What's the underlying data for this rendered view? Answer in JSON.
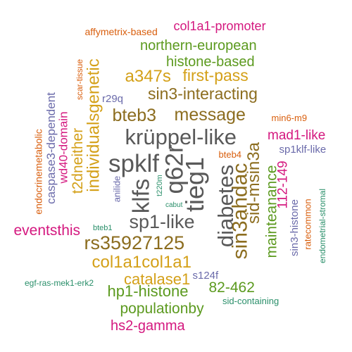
{
  "colors": {
    "gray": "#595959",
    "brown": "#8C6D1F",
    "gold": "#D4A018",
    "green": "#5C9A1F",
    "magenta": "#D4187F",
    "orange": "#D95F0E",
    "purple": "#6A6AAA",
    "teal": "#2A8F6A"
  },
  "words": [
    {
      "id": "affymetrix-based",
      "text": "affymetrix-based",
      "color": "orange"
    },
    {
      "id": "col1a1-promoter",
      "text": "col1a1-promoter",
      "color": "magenta"
    },
    {
      "id": "northern-european",
      "text": "northern-european",
      "color": "green"
    },
    {
      "id": "histone-based",
      "text": "histone-based",
      "color": "green"
    },
    {
      "id": "a347s",
      "text": "a347s",
      "color": "gold"
    },
    {
      "id": "first-pass",
      "text": "first-pass",
      "color": "gold"
    },
    {
      "id": "scar-tissue",
      "text": "scar-tissue",
      "color": "orange"
    },
    {
      "id": "caspase3-dependent",
      "text": "caspase3-dependent",
      "color": "purple"
    },
    {
      "id": "endocrinemetabolic",
      "text": "endocrinemetabolic",
      "color": "orange"
    },
    {
      "id": "individualsgenetic",
      "text": "individualsgenetic",
      "color": "gold"
    },
    {
      "id": "t2dneither",
      "text": "t2dneither",
      "color": "gold"
    },
    {
      "id": "wd40-domain",
      "text": "wd40-domain",
      "color": "magenta"
    },
    {
      "id": "r29q",
      "text": "r29q",
      "color": "purple"
    },
    {
      "id": "sin3-interacting",
      "text": "sin3-interacting",
      "color": "brown"
    },
    {
      "id": "bteb3",
      "text": "bteb3",
      "color": "brown"
    },
    {
      "id": "message",
      "text": "message",
      "color": "brown"
    },
    {
      "id": "min6-m9",
      "text": "min6-m9",
      "color": "orange"
    },
    {
      "id": "krüppel-like",
      "text": "krüppel-like",
      "color": "gray"
    },
    {
      "id": "mad1-like",
      "text": "mad1-like",
      "color": "magenta"
    },
    {
      "id": "sp1klf-like",
      "text": "sp1klf-like",
      "color": "purple"
    },
    {
      "id": "spklf",
      "text": "spklf",
      "color": "gray"
    },
    {
      "id": "klfs",
      "text": "klfs",
      "color": "gray"
    },
    {
      "id": "q62r",
      "text": "q62r",
      "color": "gray"
    },
    {
      "id": "tieg1",
      "text": "tieg1",
      "color": "gray"
    },
    {
      "id": "diabetes",
      "text": "diabetes",
      "color": "gray"
    },
    {
      "id": "sin3ahdac",
      "text": "sin3ahdac",
      "color": "brown"
    },
    {
      "id": "sid-msin3a",
      "text": "sid-msin3a",
      "color": "brown"
    },
    {
      "id": "bteb4",
      "text": "bteb4",
      "color": "orange"
    },
    {
      "id": "anilide",
      "text": "anilide",
      "color": "purple"
    },
    {
      "id": "t220m",
      "text": "t220m",
      "color": "teal"
    },
    {
      "id": "cabut",
      "text": "cabut",
      "color": "teal"
    },
    {
      "id": "mainteanance",
      "text": "mainteanance",
      "color": "green"
    },
    {
      "id": "112-149",
      "text": "112-149",
      "color": "magenta"
    },
    {
      "id": "sin3-histone",
      "text": "sin3-histone",
      "color": "purple"
    },
    {
      "id": "ratecommon",
      "text": "ratecommon",
      "color": "orange"
    },
    {
      "id": "endometrial-stromal",
      "text": "endometrial-stromal",
      "color": "teal"
    },
    {
      "id": "eventsthis",
      "text": "eventsthis",
      "color": "magenta"
    },
    {
      "id": "bteb1",
      "text": "bteb1",
      "color": "teal"
    },
    {
      "id": "sp1-like",
      "text": "sp1-like",
      "color": "gray"
    },
    {
      "id": "rs35927125",
      "text": "rs35927125",
      "color": "brown"
    },
    {
      "id": "col1a1col1a1",
      "text": "col1a1col1a1",
      "color": "gold"
    },
    {
      "id": "catalase1",
      "text": "catalase1",
      "color": "gold"
    },
    {
      "id": "egf-ras-mek1-erk2",
      "text": "egf-ras-mek1-erk2",
      "color": "teal"
    },
    {
      "id": "s124f",
      "text": "s124f",
      "color": "purple"
    },
    {
      "id": "hp1-histone",
      "text": "hp1-histone",
      "color": "green"
    },
    {
      "id": "82-462",
      "text": "82-462",
      "color": "green"
    },
    {
      "id": "populationby",
      "text": "populationby",
      "color": "green"
    },
    {
      "id": "sid-containing",
      "text": "sid-containing",
      "color": "teal"
    },
    {
      "id": "hs2-gamma",
      "text": "hs2-gamma",
      "color": "magenta"
    }
  ]
}
